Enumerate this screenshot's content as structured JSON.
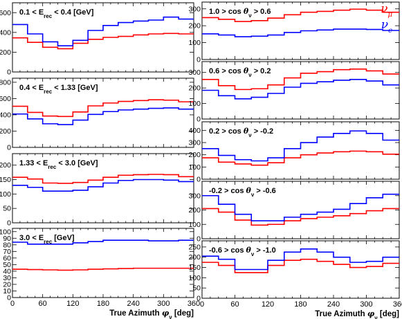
{
  "chart_data": {
    "type": "line",
    "style": "step-histogram",
    "x": [
      0,
      30,
      60,
      90,
      120,
      150,
      180,
      210,
      240,
      270,
      300,
      330,
      360
    ],
    "x_axis_label_parts": {
      "main": "True Azimuth ",
      "sym": "φ",
      "sub": "ν",
      "unit": " [deg]"
    },
    "x_ticks": [
      "0",
      "60",
      "120",
      "180",
      "240",
      "300",
      "360"
    ],
    "legend": [
      {
        "sym": "ν",
        "sub": "μ",
        "color": "#ff0000"
      },
      {
        "sym": "ν",
        "sub": "e",
        "color": "#0000ff"
      }
    ],
    "panels": [
      {
        "column": "left",
        "title_parts": [
          "0.1 < E",
          "rec",
          " < 0.4 [GeV]"
        ],
        "ylim": [
          0,
          700
        ],
        "yticks": [
          "0",
          "200",
          "400",
          "600"
        ],
        "series": [
          {
            "color": "#ff0000",
            "values": [
              345,
              300,
              250,
              235,
              290,
              330,
              350,
              360,
              375,
              385,
              390,
              385
            ]
          },
          {
            "color": "#0000ff",
            "values": [
              480,
              385,
              305,
              265,
              320,
              420,
              470,
              500,
              515,
              525,
              555,
              535
            ]
          }
        ]
      },
      {
        "column": "left",
        "title_parts": [
          "0.4 < E",
          "rec",
          " < 1.33 [GeV]"
        ],
        "ylim": [
          0,
          850
        ],
        "yticks": [
          "0",
          "200",
          "400",
          "600",
          "800"
        ],
        "series": [
          {
            "color": "#ff0000",
            "values": [
              505,
              430,
              385,
              380,
              435,
              510,
              545,
              565,
              575,
              585,
              580,
              560
            ]
          },
          {
            "color": "#0000ff",
            "values": [
              410,
              350,
              290,
              280,
              335,
              405,
              440,
              460,
              470,
              480,
              485,
              470
            ]
          }
        ]
      },
      {
        "column": "left",
        "title_parts": [
          "1.33 < E",
          "rec",
          " < 3.0 [GeV]"
        ],
        "ylim": [
          0,
          240
        ],
        "yticks": [
          "0",
          "50",
          "100",
          "150",
          "200"
        ],
        "series": [
          {
            "color": "#ff0000",
            "values": [
              158,
              152,
              138,
              137,
              140,
              148,
              158,
              165,
              167,
              168,
              167,
              160
            ]
          },
          {
            "color": "#0000ff",
            "values": [
              130,
              123,
              110,
              110,
              113,
              125,
              138,
              147,
              150,
              150,
              148,
              143
            ]
          }
        ]
      },
      {
        "column": "left",
        "title_parts": [
          "3.0 < E",
          "rec",
          " [GeV]"
        ],
        "ylim": [
          0,
          105
        ],
        "yticks": [
          "0",
          "10",
          "20",
          "30",
          "40",
          "50",
          "60",
          "70",
          "80",
          "90",
          "100"
        ],
        "series": [
          {
            "color": "#ff0000",
            "values": [
              43,
              42.5,
              42,
              41.5,
              42,
              43,
              43.5,
              44,
              44.5,
              44.5,
              44.5,
              44.5
            ]
          },
          {
            "color": "#0000ff",
            "values": [
              84,
              81,
              81,
              81,
              83,
              85,
              87,
              87,
              87,
              86,
              86,
              87
            ]
          }
        ]
      },
      {
        "column": "right",
        "title_parts": [
          "1.0 > cos ",
          "θ",
          "ν",
          " > 0.6"
        ],
        "ylim": [
          0,
          340
        ],
        "yticks": [
          "0",
          "100",
          "200",
          "300"
        ],
        "series": [
          {
            "color": "#ff0000",
            "values": [
              248,
              238,
              225,
              230,
              245,
              265,
              280,
              285,
              292,
              298,
              292,
              280
            ]
          },
          {
            "color": "#0000ff",
            "values": [
              152,
              145,
              135,
              138,
              145,
              160,
              170,
              175,
              180,
              180,
              178,
              172
            ]
          }
        ]
      },
      {
        "column": "right",
        "title_parts": [
          "0.6 > cos ",
          "θ",
          "ν",
          " > 0.2"
        ],
        "ylim": [
          0,
          370
        ],
        "yticks": [
          "0",
          "100",
          "200",
          "300"
        ],
        "series": [
          {
            "color": "#ff0000",
            "values": [
              255,
              215,
              190,
              195,
              220,
              265,
              295,
              305,
              318,
              322,
              310,
              290
            ]
          },
          {
            "color": "#0000ff",
            "values": [
              185,
              150,
              130,
              140,
              165,
              205,
              230,
              240,
              250,
              255,
              245,
              220
            ]
          }
        ]
      },
      {
        "column": "right",
        "title_parts": [
          "0.2 > cos ",
          "θ",
          "ν",
          " > -0.2"
        ],
        "ylim": [
          0,
          470
        ],
        "yticks": [
          "0",
          "100",
          "200",
          "300",
          "400"
        ],
        "series": [
          {
            "color": "#ff0000",
            "values": [
              175,
              140,
              125,
              115,
              135,
              175,
              200,
              215,
              225,
              230,
              225,
              205
            ]
          },
          {
            "color": "#0000ff",
            "values": [
              250,
              195,
              160,
              150,
              175,
              250,
              300,
              345,
              375,
              395,
              375,
              320
            ]
          }
        ]
      },
      {
        "column": "right",
        "title_parts": [
          "-0.2 > cos ",
          "θ",
          "ν",
          " > -0.6"
        ],
        "ylim": [
          0,
          400
        ],
        "yticks": [
          "0",
          "100",
          "200",
          "300"
        ],
        "series": [
          {
            "color": "#ff0000",
            "values": [
              210,
              185,
              130,
              95,
              100,
              125,
              140,
              150,
              160,
              175,
              195,
              210
            ]
          },
          {
            "color": "#0000ff",
            "values": [
              300,
              240,
              170,
              125,
              125,
              150,
              170,
              185,
              205,
              245,
              285,
              310
            ]
          }
        ]
      },
      {
        "column": "right",
        "title_parts": [
          "-0.6 > cos ",
          "θ",
          "ν",
          " > -1.0"
        ],
        "ylim": [
          0,
          280
        ],
        "yticks": [
          "0",
          "50",
          "100",
          "150",
          "200",
          "250"
        ],
        "series": [
          {
            "color": "#ff0000",
            "values": [
              175,
              160,
              125,
              125,
              160,
              185,
              190,
              180,
              165,
              150,
              155,
              170
            ]
          },
          {
            "color": "#0000ff",
            "values": [
              205,
              190,
              140,
              140,
              185,
              225,
              240,
              225,
              200,
              175,
              180,
              200
            ]
          }
        ]
      }
    ]
  }
}
